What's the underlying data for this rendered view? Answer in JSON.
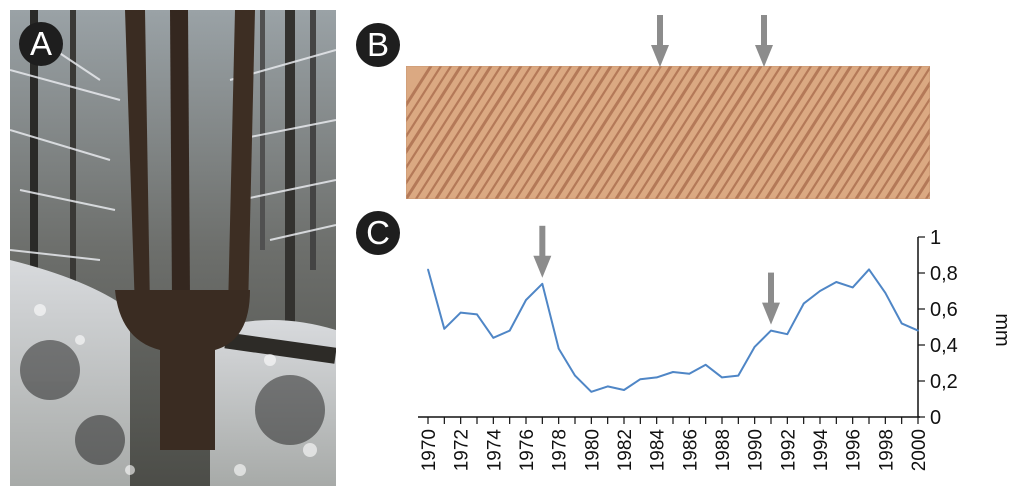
{
  "panels": {
    "a_label": "A",
    "b_label": "B",
    "c_label": "C"
  },
  "photo": {
    "description_icon": "snowy-forest-tree-photo",
    "colors": {
      "trunk": "#3a2c22",
      "snow": "#e6e8ec",
      "shadow": "#1b1b1b"
    }
  },
  "wood": {
    "description_icon": "tree-ring-cross-section",
    "colors": {
      "base": "#dba982",
      "ring": "#a7694a"
    }
  },
  "arrow_color": "#8c8c8c",
  "chart_data": {
    "type": "line",
    "title": "",
    "xlabel": "",
    "ylabel": "mm",
    "x": [
      1970,
      1971,
      1972,
      1973,
      1974,
      1975,
      1976,
      1977,
      1978,
      1979,
      1980,
      1981,
      1982,
      1983,
      1984,
      1985,
      1986,
      1987,
      1988,
      1989,
      1990,
      1991,
      1992,
      1993,
      1994,
      1995,
      1996,
      1997,
      1998,
      1999,
      2000
    ],
    "series": [
      {
        "values": [
          0.82,
          0.49,
          0.58,
          0.57,
          0.44,
          0.48,
          0.65,
          0.74,
          0.38,
          0.23,
          0.14,
          0.17,
          0.15,
          0.21,
          0.22,
          0.25,
          0.24,
          0.29,
          0.22,
          0.23,
          0.39,
          0.48,
          0.46,
          0.63,
          0.7,
          0.75,
          0.72,
          0.82,
          0.69,
          0.52,
          0.48
        ],
        "color": "#4f86c6"
      }
    ],
    "xticks": [
      "1970",
      "1972",
      "1974",
      "1976",
      "1978",
      "1980",
      "1982",
      "1984",
      "1986",
      "1988",
      "1990",
      "1992",
      "1994",
      "1996",
      "1998",
      "2000"
    ],
    "yticks": [
      "0",
      "0,2",
      "0,4",
      "0,6",
      "0,8",
      "1"
    ],
    "ylim": [
      0,
      1
    ],
    "xlim": [
      1970,
      2000
    ],
    "arrows_at_years": [
      1977,
      1991
    ],
    "grid": false
  }
}
